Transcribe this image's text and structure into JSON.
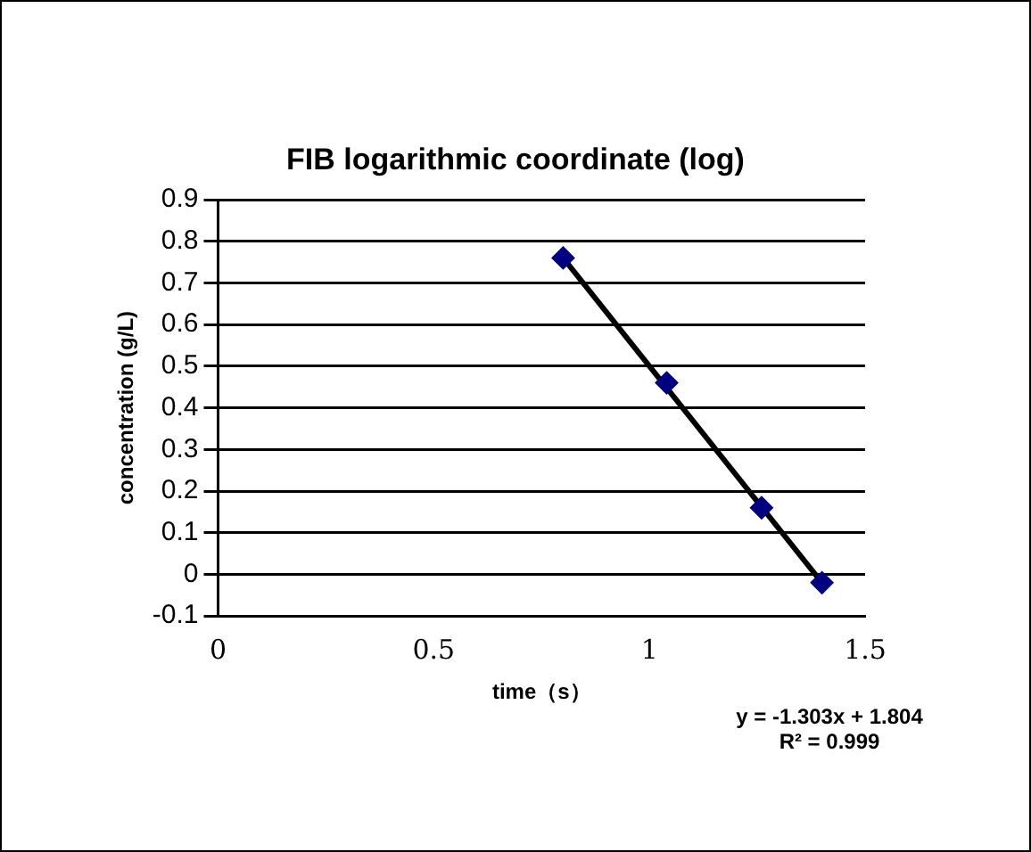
{
  "chart_data": {
    "type": "scatter",
    "title": "FIB logarithmic coordinate (log)",
    "xlabel": "time（s）",
    "ylabel": "concentration (g/L)",
    "series": [
      {
        "color": "#000080",
        "marker": "diamond",
        "x": [
          0.8,
          1.04,
          1.26,
          1.4
        ],
        "values": [
          0.76,
          0.46,
          0.16,
          -0.02
        ]
      },
      {
        "type": "line",
        "color": "#000000",
        "marker": "none",
        "x": [
          0.8,
          1.4
        ],
        "values": [
          0.76,
          -0.02
        ]
      }
    ],
    "xlim": [
      0,
      1.5
    ],
    "xticks": [
      0,
      0.5,
      1,
      1.5
    ],
    "ylim": [
      -0.1,
      0.9
    ],
    "yticks": [
      -0.1,
      0,
      0.1,
      0.2,
      0.3,
      0.4,
      0.5,
      0.6,
      0.7,
      0.8,
      0.9
    ],
    "grid": "y",
    "legend": false,
    "annotations": [
      "y = -1.303x + 1.804",
      "R² = 0.999"
    ]
  }
}
